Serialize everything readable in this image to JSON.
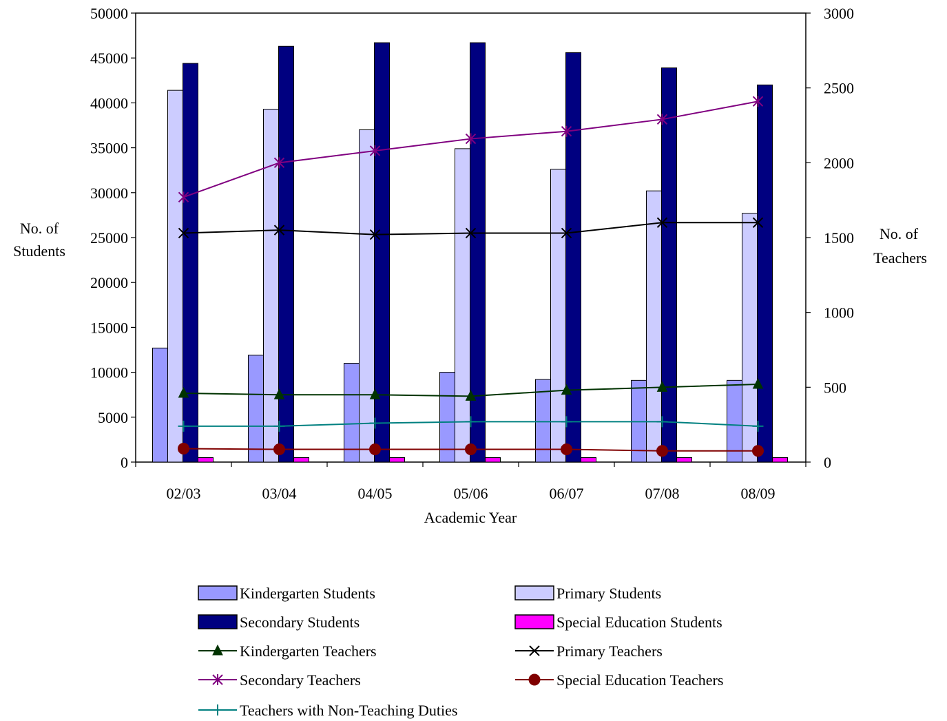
{
  "chart_data": {
    "type": "bar",
    "categories": [
      "02/03",
      "03/04",
      "04/05",
      "05/06",
      "06/07",
      "07/08",
      "08/09"
    ],
    "xlabel": "Academic Year",
    "ylabel_left": [
      "No. of",
      "Students"
    ],
    "ylabel_right": [
      "No. of",
      "Teachers"
    ],
    "ylim_left": [
      0,
      50000
    ],
    "ylim_right": [
      0,
      3000
    ],
    "yticks_left": [
      "0",
      "5000",
      "10000",
      "15000",
      "20000",
      "25000",
      "30000",
      "35000",
      "40000",
      "45000",
      "50000"
    ],
    "yticks_right": [
      "0",
      "500",
      "1000",
      "1500",
      "2000",
      "2500",
      "3000"
    ],
    "grid": false,
    "legend_position": "bottom",
    "bar_series": [
      {
        "name": "Kindergarten Students",
        "color": "#9999FF",
        "values": [
          12700,
          11900,
          11000,
          10000,
          9200,
          9100,
          9100
        ]
      },
      {
        "name": "Primary Students",
        "color": "#CCCCFF",
        "values": [
          41400,
          39300,
          37000,
          34900,
          32600,
          30200,
          27700
        ]
      },
      {
        "name": "Secondary Students",
        "color": "#000080",
        "values": [
          44400,
          46300,
          46700,
          46700,
          45600,
          43900,
          42000
        ]
      },
      {
        "name": "Special Education Students",
        "color": "#FF00FF",
        "values": [
          500,
          500,
          500,
          500,
          500,
          500,
          500
        ]
      }
    ],
    "line_series": [
      {
        "name": "Kindergarten Teachers",
        "color": "#003300",
        "marker": "triangle",
        "values": [
          460,
          450,
          450,
          440,
          480,
          500,
          520
        ]
      },
      {
        "name": "Primary Teachers",
        "color": "#000000",
        "marker": "x",
        "values": [
          1530,
          1550,
          1520,
          1530,
          1530,
          1600,
          1600
        ]
      },
      {
        "name": "Secondary Teachers",
        "color": "#800080",
        "marker": "star",
        "values": [
          1770,
          2000,
          2080,
          2160,
          2210,
          2290,
          2410
        ]
      },
      {
        "name": "Special Education Teachers",
        "color": "#800000",
        "marker": "circle",
        "values": [
          90,
          85,
          85,
          85,
          85,
          75,
          75
        ]
      },
      {
        "name": "Teachers with Non-Teaching Duties",
        "color": "#008080",
        "marker": "plus",
        "values": [
          240,
          240,
          260,
          270,
          270,
          270,
          240
        ]
      }
    ]
  }
}
